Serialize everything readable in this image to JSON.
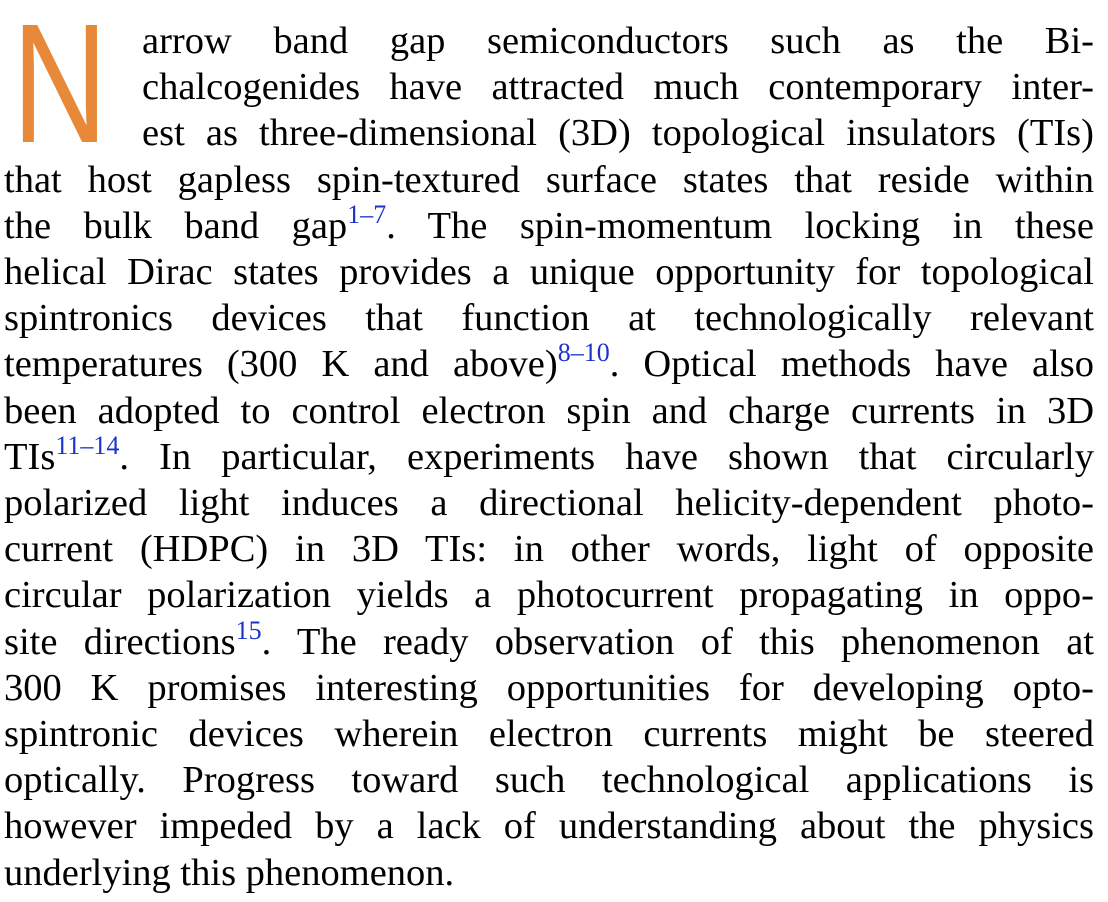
{
  "paragraph": {
    "drop_cap": "N",
    "drop_cap_color": "#e8893a",
    "ref_color": "#1a33cc",
    "lines": [
      {
        "parts": [
          {
            "t": "arrow band gap semiconductors such as the Bi-"
          }
        ]
      },
      {
        "parts": [
          {
            "t": "chalcogenides have attracted much contemporary inter-"
          }
        ]
      },
      {
        "parts": [
          {
            "t": "est as three-dimensional (3D) topological insulators (TIs)"
          }
        ]
      },
      {
        "parts": [
          {
            "t": "that host gapless spin-textured surface states that reside within"
          }
        ]
      },
      {
        "parts": [
          {
            "t": "the bulk band gap"
          },
          {
            "ref": "1–7"
          },
          {
            "t": ". The spin-momentum locking in these"
          }
        ]
      },
      {
        "parts": [
          {
            "t": "helical Dirac states provides a unique opportunity for topological"
          }
        ]
      },
      {
        "parts": [
          {
            "t": "spintronics devices that function at technologically relevant"
          }
        ]
      },
      {
        "parts": [
          {
            "t": "temperatures (300 K and above)"
          },
          {
            "ref": "8–10"
          },
          {
            "t": ". Optical methods have also"
          }
        ]
      },
      {
        "parts": [
          {
            "t": "been adopted to control electron spin and charge currents in 3D"
          }
        ]
      },
      {
        "parts": [
          {
            "t": "TIs"
          },
          {
            "ref": "11–14"
          },
          {
            "t": ". In particular, experiments have shown that circularly"
          }
        ]
      },
      {
        "parts": [
          {
            "t": "polarized light induces a directional helicity-dependent photo-"
          }
        ]
      },
      {
        "parts": [
          {
            "t": "current (HDPC) in 3D TIs: in other words, light of opposite"
          }
        ]
      },
      {
        "parts": [
          {
            "t": "circular polarization yields a photocurrent propagating in oppo-"
          }
        ]
      },
      {
        "parts": [
          {
            "t": "site directions"
          },
          {
            "ref": "15"
          },
          {
            "t": ". The ready observation of this phenomenon at"
          }
        ]
      },
      {
        "parts": [
          {
            "t": "300 K promises interesting opportunities for developing opto-"
          }
        ]
      },
      {
        "parts": [
          {
            "t": "spintronic devices wherein electron currents might be steered"
          }
        ]
      },
      {
        "parts": [
          {
            "t": "optically. Progress toward such technological applications is"
          }
        ]
      },
      {
        "parts": [
          {
            "t": "however impeded by a lack of understanding about the physics"
          }
        ]
      },
      {
        "parts": [
          {
            "t": "underlying this phenomenon."
          }
        ]
      }
    ]
  }
}
